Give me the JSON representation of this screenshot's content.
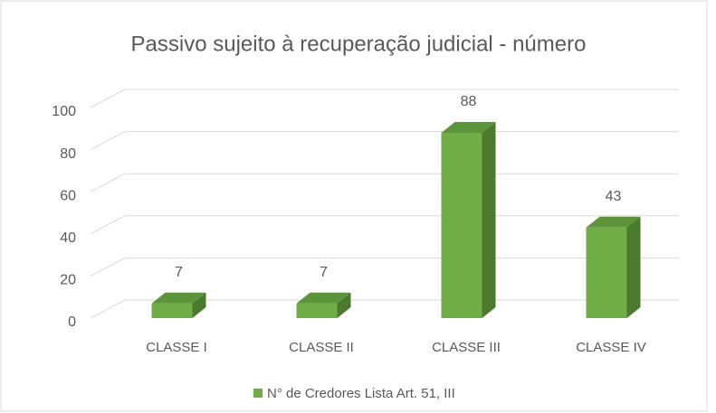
{
  "chart_data": {
    "type": "bar3d",
    "title": "Passivo sujeito à recuperação judicial - número",
    "categories": [
      "CLASSE I",
      "CLASSE II",
      "CLASSE III",
      "CLASSE IV"
    ],
    "series": [
      {
        "name": "N° de Credores Lista Art. 51, III",
        "color": "#70ad47",
        "values": [
          7,
          7,
          88,
          43
        ]
      }
    ],
    "ylim": [
      0,
      100
    ],
    "yticks": [
      0,
      20,
      40,
      60,
      80,
      100
    ],
    "grid": true,
    "legend": "bottom"
  }
}
